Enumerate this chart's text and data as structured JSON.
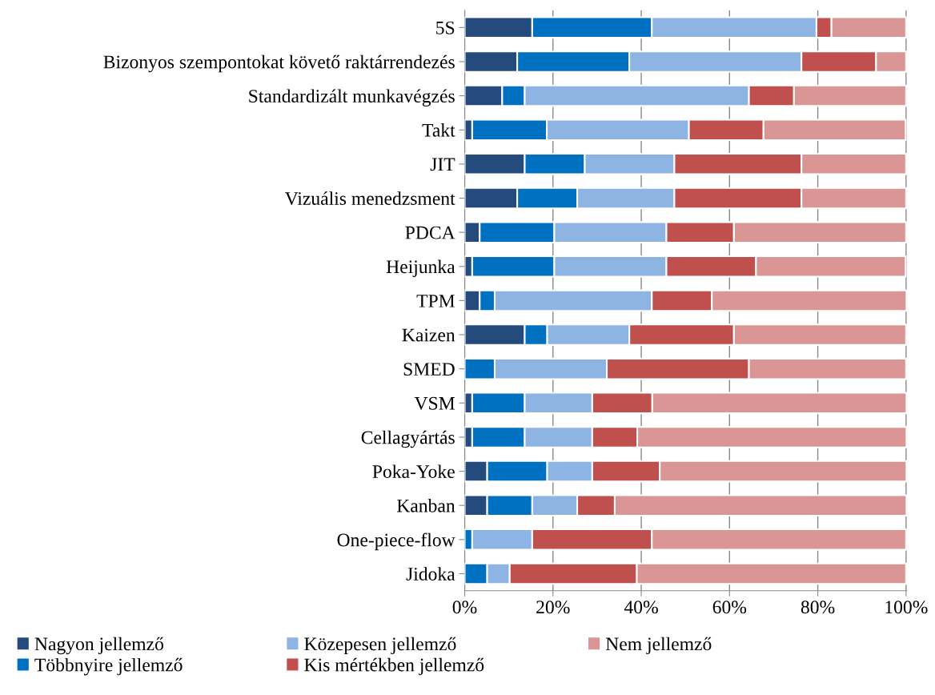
{
  "chart_data": {
    "type": "bar",
    "orientation": "horizontal",
    "stacked": true,
    "categories": [
      "5S",
      "Bizonyos szempontokat követő raktárrendezés",
      "Standardizált munkavégzés",
      "Takt",
      "JIT",
      "Vizuális menedzsment",
      "PDCA",
      "Heijunka",
      "TPM",
      "Kaizen",
      "SMED",
      "VSM",
      "Cellagyártás",
      "Poka-Yoke",
      "Kanban",
      "One-piece-flow",
      "Jidoka"
    ],
    "series": [
      {
        "name": "Nagyon jellemző",
        "color": "#254a7c",
        "values": [
          15.3,
          11.9,
          8.5,
          1.7,
          13.6,
          11.9,
          3.4,
          1.7,
          3.4,
          13.6,
          0,
          1.7,
          1.7,
          5.1,
          5.1,
          0,
          0
        ]
      },
      {
        "name": "Többnyire jellemző",
        "color": "#0070c0",
        "values": [
          27.1,
          25.4,
          5.1,
          16.9,
          13.6,
          13.6,
          16.9,
          18.6,
          3.4,
          5.1,
          6.8,
          11.9,
          11.9,
          13.6,
          10.2,
          1.7,
          5.1
        ]
      },
      {
        "name": "Közepesen jellemző",
        "color": "#8eb4e3",
        "values": [
          37.3,
          39.0,
          50.8,
          32.2,
          20.3,
          22.0,
          25.4,
          25.4,
          35.6,
          18.6,
          25.4,
          15.3,
          15.3,
          10.2,
          10.2,
          13.6,
          5.1
        ]
      },
      {
        "name": "Kis mértékben jellemző",
        "color": "#c0504d",
        "values": [
          3.4,
          16.9,
          10.2,
          16.9,
          28.8,
          28.8,
          15.3,
          20.3,
          13.6,
          23.7,
          32.2,
          13.6,
          10.2,
          15.3,
          8.5,
          27.1,
          28.8
        ]
      },
      {
        "name": "Nem jellemző",
        "color": "#d99694",
        "values": [
          16.9,
          6.8,
          25.4,
          32.2,
          23.7,
          23.7,
          39.0,
          33.9,
          44.1,
          39.0,
          35.6,
          57.6,
          61.0,
          55.9,
          66.1,
          57.6,
          61.0
        ]
      }
    ],
    "xlim": [
      0,
      100.2
    ],
    "xticks": [
      {
        "value": 0,
        "label": "0%"
      },
      {
        "value": 20,
        "label": "20%"
      },
      {
        "value": 40,
        "label": "40%"
      },
      {
        "value": 60,
        "label": "60%"
      },
      {
        "value": 80,
        "label": "80%"
      },
      {
        "value": 100,
        "label": "100%"
      }
    ],
    "grid": "x",
    "legend": "bottom"
  }
}
